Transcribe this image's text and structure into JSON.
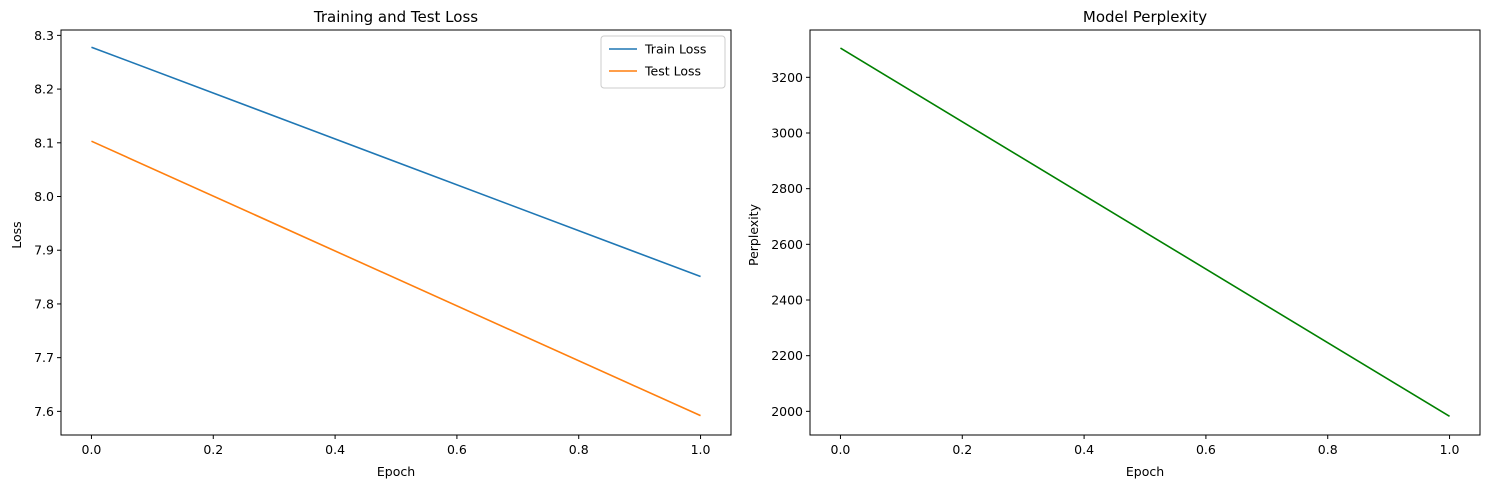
{
  "chart_data": [
    {
      "type": "line",
      "title": "Training and Test Loss",
      "xlabel": "Epoch",
      "ylabel": "Loss",
      "xlim": [
        -0.05,
        1.05
      ],
      "ylim": [
        7.556,
        8.31
      ],
      "xticks": [
        0.0,
        0.2,
        0.4,
        0.6,
        0.8,
        1.0
      ],
      "xtick_labels": [
        "0.0",
        "0.2",
        "0.4",
        "0.6",
        "0.8",
        "1.0"
      ],
      "yticks": [
        7.6,
        7.7,
        7.8,
        7.9,
        8.0,
        8.1,
        8.2,
        8.3
      ],
      "ytick_labels": [
        "7.6",
        "7.7",
        "7.8",
        "7.9",
        "8.0",
        "8.1",
        "8.2",
        "8.3"
      ],
      "grid": false,
      "legend": "top-right",
      "series": [
        {
          "name": "Train Loss",
          "color": "#1f77b4",
          "x": [
            0,
            1
          ],
          "y": [
            8.278,
            7.851
          ]
        },
        {
          "name": "Test Loss",
          "color": "#ff7f0e",
          "x": [
            0,
            1
          ],
          "y": [
            8.103,
            7.592
          ]
        }
      ]
    },
    {
      "type": "line",
      "title": "Model Perplexity",
      "xlabel": "Epoch",
      "ylabel": "Perplexity",
      "xlim": [
        -0.05,
        1.05
      ],
      "ylim": [
        1915,
        3370
      ],
      "xticks": [
        0.0,
        0.2,
        0.4,
        0.6,
        0.8,
        1.0
      ],
      "xtick_labels": [
        "0.0",
        "0.2",
        "0.4",
        "0.6",
        "0.8",
        "1.0"
      ],
      "yticks": [
        2000,
        2200,
        2400,
        2600,
        2800,
        3000,
        3200
      ],
      "ytick_labels": [
        "2000",
        "2200",
        "2400",
        "2600",
        "2800",
        "3000",
        "3200"
      ],
      "grid": false,
      "legend": "none",
      "series": [
        {
          "color": "#008000",
          "x": [
            0,
            1
          ],
          "y": [
            3305,
            1982
          ]
        }
      ]
    }
  ]
}
